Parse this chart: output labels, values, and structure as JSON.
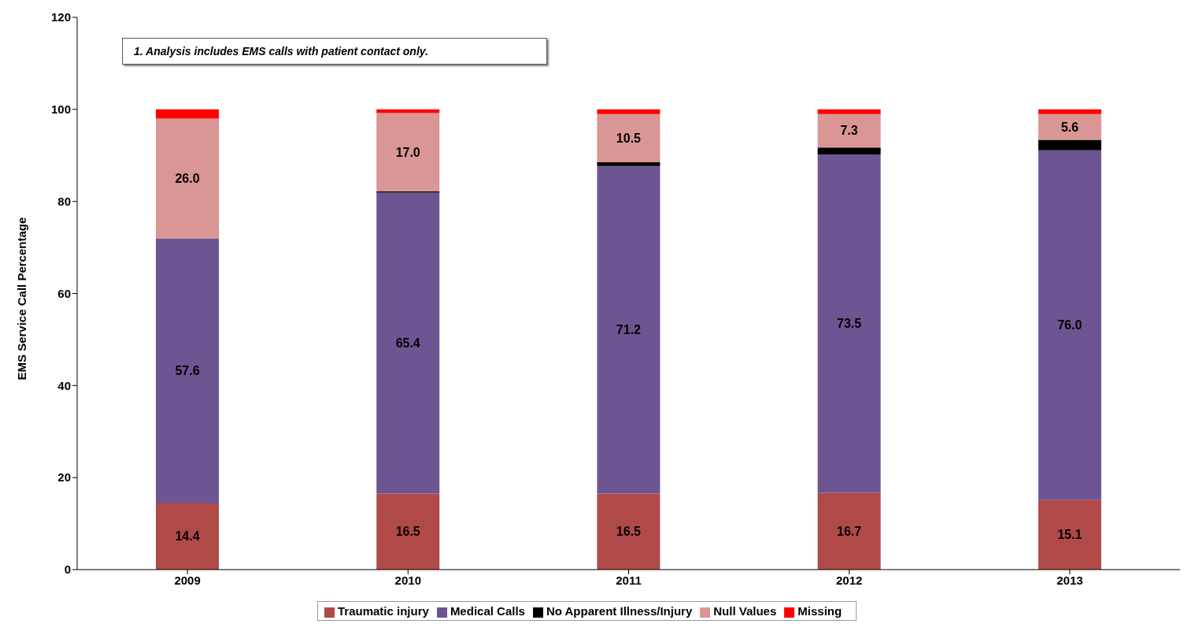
{
  "chart_data": {
    "type": "bar",
    "stacked": true,
    "ylabel": "EMS Service Call Percentage",
    "categories": [
      "2009",
      "2010",
      "2011",
      "2012",
      "2013"
    ],
    "series": [
      {
        "name": "Traumatic injury",
        "color": "#b04a48",
        "values": [
          14.4,
          16.5,
          16.5,
          16.7,
          15.1
        ],
        "value_labels": [
          "14.4",
          "16.5",
          "16.5",
          "16.7",
          "15.1"
        ]
      },
      {
        "name": "Medical Calls",
        "color": "#6d5591",
        "values": [
          57.6,
          65.4,
          71.2,
          73.5,
          76.0
        ],
        "value_labels": [
          "57.6",
          "65.4",
          "71.2",
          "73.5",
          "76.0"
        ]
      },
      {
        "name": "No Apparent Illness/Injury",
        "color": "#000000",
        "values": [
          0,
          0.3,
          0.8,
          1.5,
          2.3
        ]
      },
      {
        "name": "Null Values",
        "color": "#d99694",
        "values": [
          26.0,
          17.0,
          10.5,
          7.3,
          5.6
        ],
        "value_labels": [
          "26.0",
          "17.0",
          "10.5",
          "7.3",
          "5.6"
        ]
      },
      {
        "name": "Missing",
        "color": "#ff0000",
        "values": [
          2.0,
          0.8,
          1.0,
          1.0,
          1.0
        ]
      }
    ],
    "ylim": [
      0,
      120
    ],
    "yticks": [
      0,
      20,
      40,
      60,
      80,
      100,
      120
    ],
    "legend": "bottom",
    "annotations": [
      "1.  Analysis includes EMS calls with patient contact only."
    ]
  }
}
